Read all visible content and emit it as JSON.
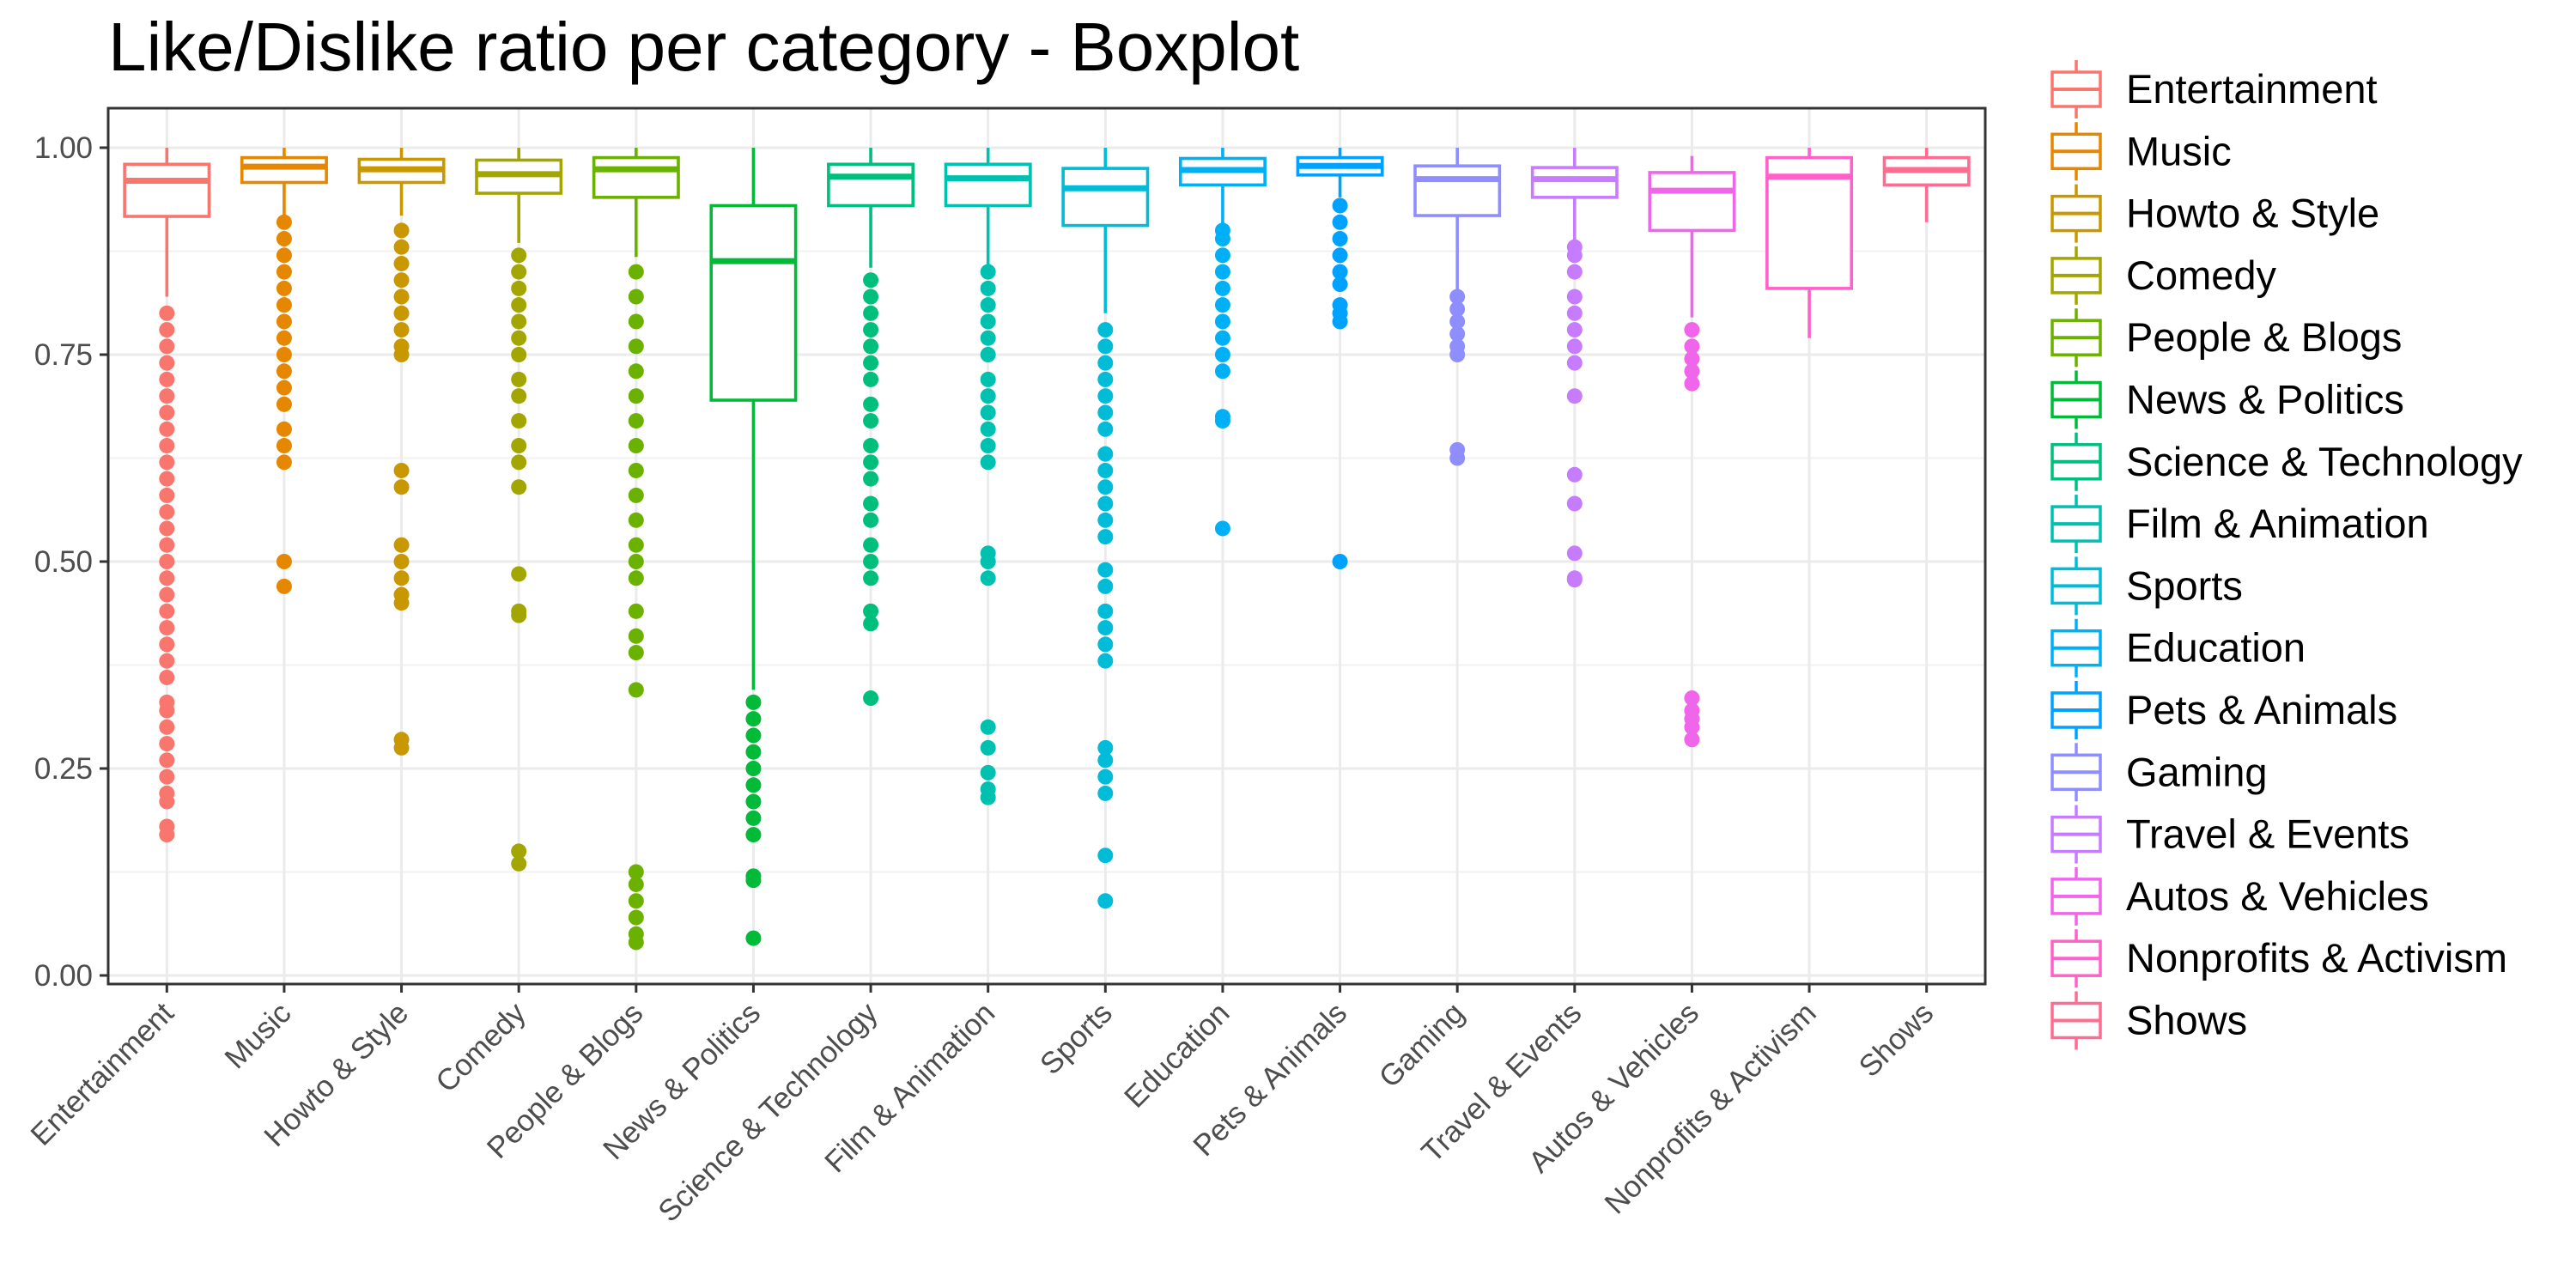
{
  "chart_data": {
    "type": "boxplot",
    "title": "Like/Dislike ratio per category - Boxplot",
    "xlabel": "",
    "ylabel": "",
    "ylim": [
      0,
      1
    ],
    "y_ticks": [
      "0.00",
      "0.25",
      "0.50",
      "0.75",
      "1.00"
    ],
    "y_tick_values": [
      0,
      0.25,
      0.5,
      0.75,
      1.0
    ],
    "grid": true,
    "legend_position": "right",
    "categories": [
      "Entertainment",
      "Music",
      "Howto & Style",
      "Comedy",
      "People & Blogs",
      "News & Politics",
      "Science & Technology",
      "Film & Animation",
      "Sports",
      "Education",
      "Pets & Animals",
      "Gaming",
      "Travel & Events",
      "Autos & Vehicles",
      "Nonprofits & Activism",
      "Shows"
    ],
    "colors": [
      "#F8766D",
      "#E58700",
      "#C99800",
      "#A3A500",
      "#6BB100",
      "#00BA38",
      "#00BF7D",
      "#00C0AF",
      "#00BCD8",
      "#00B0F6",
      "#00A1FF",
      "#8F8EFF",
      "#C77CFF",
      "#F066EA",
      "#FF61C9",
      "#FF6C91"
    ],
    "series": [
      {
        "name": "Entertainment",
        "whisker_low": 0.82,
        "q1": 0.917,
        "median": 0.96,
        "q3": 0.98,
        "whisker_high": 1.0,
        "outliers": [
          0.17,
          0.18,
          0.21,
          0.22,
          0.24,
          0.26,
          0.28,
          0.3,
          0.32,
          0.33,
          0.36,
          0.38,
          0.4,
          0.42,
          0.44,
          0.46,
          0.48,
          0.5,
          0.52,
          0.54,
          0.56,
          0.58,
          0.6,
          0.62,
          0.64,
          0.66,
          0.68,
          0.7,
          0.72,
          0.74,
          0.76,
          0.78,
          0.8
        ]
      },
      {
        "name": "Music",
        "whisker_low": 0.915,
        "q1": 0.958,
        "median": 0.977,
        "q3": 0.988,
        "whisker_high": 1.0,
        "outliers": [
          0.47,
          0.5,
          0.62,
          0.64,
          0.66,
          0.69,
          0.71,
          0.73,
          0.75,
          0.77,
          0.79,
          0.81,
          0.83,
          0.85,
          0.87,
          0.89,
          0.91
        ]
      },
      {
        "name": "Howto & Style",
        "whisker_low": 0.918,
        "q1": 0.958,
        "median": 0.974,
        "q3": 0.986,
        "whisker_high": 1.0,
        "outliers": [
          0.275,
          0.285,
          0.45,
          0.46,
          0.48,
          0.5,
          0.52,
          0.59,
          0.61,
          0.75,
          0.76,
          0.78,
          0.8,
          0.82,
          0.84,
          0.86,
          0.88,
          0.9
        ]
      },
      {
        "name": "Comedy",
        "whisker_low": 0.885,
        "q1": 0.945,
        "median": 0.968,
        "q3": 0.985,
        "whisker_high": 1.0,
        "outliers": [
          0.135,
          0.15,
          0.435,
          0.44,
          0.485,
          0.59,
          0.62,
          0.64,
          0.67,
          0.7,
          0.72,
          0.75,
          0.77,
          0.79,
          0.81,
          0.83,
          0.85,
          0.87
        ]
      },
      {
        "name": "People & Blogs",
        "whisker_low": 0.868,
        "q1": 0.94,
        "median": 0.974,
        "q3": 0.988,
        "whisker_high": 1.0,
        "outliers": [
          0.04,
          0.05,
          0.07,
          0.09,
          0.11,
          0.125,
          0.345,
          0.39,
          0.41,
          0.44,
          0.48,
          0.5,
          0.52,
          0.55,
          0.58,
          0.61,
          0.64,
          0.67,
          0.7,
          0.73,
          0.76,
          0.79,
          0.82,
          0.85
        ]
      },
      {
        "name": "News & Politics",
        "whisker_low": 0.345,
        "q1": 0.695,
        "median": 0.863,
        "q3": 0.93,
        "whisker_high": 1.0,
        "outliers": [
          0.045,
          0.115,
          0.12,
          0.17,
          0.19,
          0.21,
          0.23,
          0.25,
          0.27,
          0.29,
          0.31,
          0.33
        ]
      },
      {
        "name": "Science & Technology",
        "whisker_low": 0.855,
        "q1": 0.93,
        "median": 0.965,
        "q3": 0.98,
        "whisker_high": 1.0,
        "outliers": [
          0.335,
          0.425,
          0.44,
          0.48,
          0.5,
          0.52,
          0.55,
          0.57,
          0.6,
          0.62,
          0.64,
          0.67,
          0.69,
          0.72,
          0.74,
          0.76,
          0.78,
          0.8,
          0.82,
          0.84
        ]
      },
      {
        "name": "Film & Animation",
        "whisker_low": 0.855,
        "q1": 0.93,
        "median": 0.963,
        "q3": 0.98,
        "whisker_high": 1.0,
        "outliers": [
          0.215,
          0.225,
          0.245,
          0.275,
          0.3,
          0.48,
          0.5,
          0.51,
          0.62,
          0.64,
          0.66,
          0.68,
          0.7,
          0.72,
          0.75,
          0.77,
          0.79,
          0.81,
          0.83,
          0.85
        ]
      },
      {
        "name": "Sports",
        "whisker_low": 0.8,
        "q1": 0.906,
        "median": 0.951,
        "q3": 0.975,
        "whisker_high": 1.0,
        "outliers": [
          0.09,
          0.145,
          0.22,
          0.24,
          0.26,
          0.275,
          0.38,
          0.4,
          0.42,
          0.44,
          0.47,
          0.49,
          0.53,
          0.55,
          0.57,
          0.59,
          0.61,
          0.63,
          0.66,
          0.68,
          0.7,
          0.72,
          0.74,
          0.76,
          0.78
        ]
      },
      {
        "name": "Education",
        "whisker_low": 0.905,
        "q1": 0.955,
        "median": 0.973,
        "q3": 0.987,
        "whisker_high": 1.0,
        "outliers": [
          0.54,
          0.67,
          0.675,
          0.73,
          0.75,
          0.77,
          0.79,
          0.81,
          0.83,
          0.85,
          0.87,
          0.89,
          0.9
        ]
      },
      {
        "name": "Pets & Animals",
        "whisker_low": 0.94,
        "q1": 0.967,
        "median": 0.978,
        "q3": 0.988,
        "whisker_high": 1.0,
        "outliers": [
          0.5,
          0.79,
          0.8,
          0.81,
          0.835,
          0.85,
          0.87,
          0.89,
          0.91,
          0.93
        ]
      },
      {
        "name": "Gaming",
        "whisker_low": 0.825,
        "q1": 0.918,
        "median": 0.962,
        "q3": 0.978,
        "whisker_high": 1.0,
        "outliers": [
          0.625,
          0.635,
          0.75,
          0.76,
          0.775,
          0.79,
          0.805,
          0.82
        ]
      },
      {
        "name": "Travel & Events",
        "whisker_low": 0.885,
        "q1": 0.94,
        "median": 0.962,
        "q3": 0.976,
        "whisker_high": 1.0,
        "outliers": [
          0.478,
          0.48,
          0.51,
          0.57,
          0.605,
          0.7,
          0.74,
          0.76,
          0.78,
          0.8,
          0.82,
          0.85,
          0.87,
          0.88
        ]
      },
      {
        "name": "Autos & Vehicles",
        "whisker_low": 0.795,
        "q1": 0.9,
        "median": 0.948,
        "q3": 0.97,
        "whisker_high": 0.99,
        "outliers": [
          0.285,
          0.3,
          0.31,
          0.32,
          0.335,
          0.715,
          0.73,
          0.745,
          0.76,
          0.78
        ]
      },
      {
        "name": "Nonprofits & Activism",
        "whisker_low": 0.77,
        "q1": 0.83,
        "median": 0.965,
        "q3": 0.988,
        "whisker_high": 1.0,
        "outliers": []
      },
      {
        "name": "Shows",
        "whisker_low": 0.91,
        "q1": 0.955,
        "median": 0.973,
        "q3": 0.988,
        "whisker_high": 1.0,
        "outliers": []
      }
    ]
  }
}
